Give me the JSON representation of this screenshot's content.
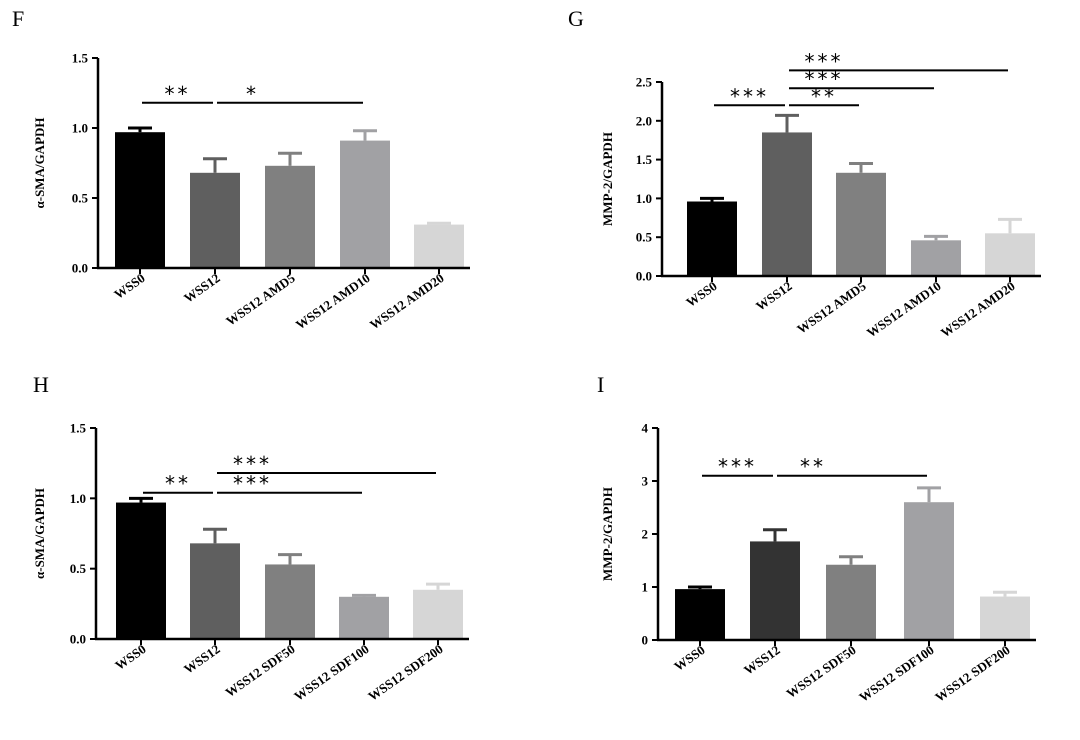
{
  "chart_data": [
    {
      "panel": "F",
      "type": "bar",
      "ylabel": "α-SMA/GAPDH",
      "ylim": [
        0,
        1.5
      ],
      "yticks": [
        "0.0",
        "0.5",
        "1.0",
        "1.5"
      ],
      "categories": [
        "WSS0",
        "WSS12",
        "WSS12 AMD5",
        "WSS12 AMD10",
        "WSS12 AMD20"
      ],
      "values": [
        0.97,
        0.68,
        0.73,
        0.91,
        0.31
      ],
      "errors": [
        0.03,
        0.1,
        0.09,
        0.07,
        0.01
      ],
      "colors": [
        "#000000",
        "#5f5f5f",
        "#808080",
        "#a1a1a4",
        "#d6d6d6"
      ],
      "annotations": [
        {
          "text": "**",
          "from": 0,
          "to": 1,
          "y": 1.18
        },
        {
          "text": "*",
          "from": 1,
          "to": 3,
          "y": 1.18
        }
      ]
    },
    {
      "panel": "G",
      "type": "bar",
      "ylabel": "MMP-2/GAPDH",
      "ylim": [
        0,
        2.5
      ],
      "yticks": [
        "0.0",
        "0.5",
        "1.0",
        "1.5",
        "2.0",
        "2.5"
      ],
      "categories": [
        "WSS0",
        "WSS12",
        "WSS12 AMD5",
        "WSS12 AMD10",
        "WSS12 AMD20"
      ],
      "values": [
        0.96,
        1.85,
        1.33,
        0.46,
        0.55
      ],
      "errors": [
        0.04,
        0.22,
        0.12,
        0.05,
        0.18
      ],
      "colors": [
        "#000000",
        "#5f5f5f",
        "#808080",
        "#a1a1a4",
        "#d6d6d6"
      ],
      "annotations": [
        {
          "text": "***",
          "from": 0,
          "to": 1,
          "y": 2.2
        },
        {
          "text": "**",
          "from": 1,
          "to": 2,
          "y": 2.2
        },
        {
          "text": "***",
          "from": 1,
          "to": 3,
          "y": 2.42
        },
        {
          "text": "***",
          "from": 1,
          "to": 4,
          "y": 2.65
        }
      ]
    },
    {
      "panel": "H",
      "type": "bar",
      "ylabel": "α-SMA/GAPDH",
      "ylim": [
        0,
        1.5
      ],
      "yticks": [
        "0.0",
        "0.5",
        "1.0",
        "1.5"
      ],
      "categories": [
        "WSS0",
        "WSS12",
        "WSS12 SDF50",
        "WSS12 SDF100",
        "WSS12 SDF200"
      ],
      "values": [
        0.97,
        0.68,
        0.53,
        0.3,
        0.35
      ],
      "errors": [
        0.03,
        0.1,
        0.07,
        0.01,
        0.04
      ],
      "colors": [
        "#000000",
        "#5f5f5f",
        "#808080",
        "#a1a1a4",
        "#d6d6d6"
      ],
      "annotations": [
        {
          "text": "**",
          "from": 0,
          "to": 1,
          "y": 1.04
        },
        {
          "text": "***",
          "from": 1,
          "to": 3,
          "y": 1.04
        },
        {
          "text": "***",
          "from": 1,
          "to": 4,
          "y": 1.18
        }
      ]
    },
    {
      "panel": "I",
      "type": "bar",
      "ylabel": "MMP-2/GAPDH",
      "ylim": [
        0,
        4
      ],
      "yticks": [
        "0",
        "1",
        "2",
        "3",
        "4"
      ],
      "categories": [
        "WSS0",
        "WSS12",
        "WSS12 SDF50",
        "WSS12 SDF100",
        "WSS12 SDF200"
      ],
      "values": [
        0.96,
        1.86,
        1.42,
        2.6,
        0.82
      ],
      "errors": [
        0.04,
        0.22,
        0.15,
        0.27,
        0.08
      ],
      "colors": [
        "#000000",
        "#333333",
        "#808080",
        "#a1a1a4",
        "#d6d6d6"
      ],
      "annotations": [
        {
          "text": "***",
          "from": 0,
          "to": 1,
          "y": 3.1
        },
        {
          "text": "**",
          "from": 1,
          "to": 3,
          "y": 3.1
        }
      ]
    }
  ]
}
